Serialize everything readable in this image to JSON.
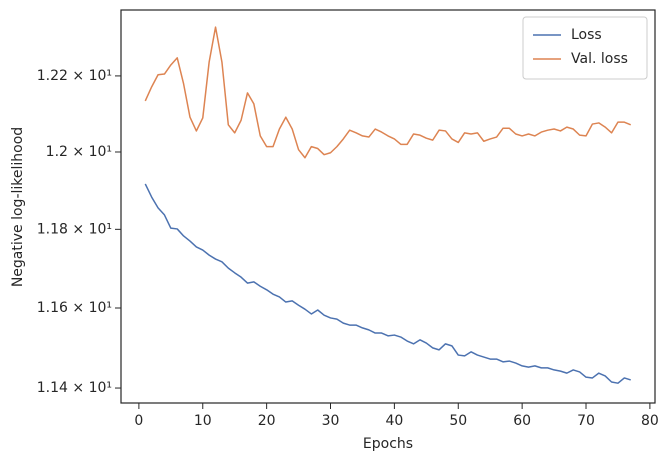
{
  "chart_data": {
    "type": "line",
    "xlabel": "Epochs",
    "ylabel": "Negative log-likelihood",
    "x": [
      1,
      2,
      3,
      4,
      5,
      6,
      7,
      8,
      9,
      10,
      11,
      12,
      13,
      14,
      15,
      16,
      17,
      18,
      19,
      20,
      21,
      22,
      23,
      24,
      25,
      26,
      27,
      28,
      29,
      30,
      31,
      32,
      33,
      34,
      35,
      36,
      37,
      38,
      39,
      40,
      41,
      42,
      43,
      44,
      45,
      46,
      47,
      48,
      49,
      50,
      51,
      52,
      53,
      54,
      55,
      56,
      57,
      58,
      59,
      60,
      61,
      62,
      63,
      64,
      65,
      66,
      67,
      68,
      69,
      70,
      71,
      72,
      73,
      74,
      75,
      76,
      77
    ],
    "series": [
      {
        "name": "Loss",
        "color": "#4c72b0",
        "values": [
          11.917,
          11.883,
          11.855,
          11.837,
          11.803,
          11.801,
          11.783,
          11.77,
          11.755,
          11.747,
          11.734,
          11.724,
          11.717,
          11.701,
          11.689,
          11.678,
          11.663,
          11.666,
          11.655,
          11.646,
          11.635,
          11.628,
          11.615,
          11.618,
          11.607,
          11.597,
          11.585,
          11.595,
          11.582,
          11.575,
          11.572,
          11.562,
          11.557,
          11.557,
          11.55,
          11.545,
          11.537,
          11.537,
          11.53,
          11.532,
          11.527,
          11.517,
          11.51,
          11.52,
          11.512,
          11.5,
          11.495,
          11.51,
          11.505,
          11.482,
          11.48,
          11.49,
          11.482,
          11.477,
          11.472,
          11.472,
          11.465,
          11.467,
          11.462,
          11.455,
          11.452,
          11.455,
          11.45,
          11.45,
          11.445,
          11.442,
          11.437,
          11.445,
          11.44,
          11.427,
          11.425,
          11.437,
          11.43,
          11.415,
          11.412,
          11.425,
          11.42
        ]
      },
      {
        "name": "Val. loss",
        "color": "#dd8452",
        "values": [
          12.134,
          12.171,
          12.203,
          12.205,
          12.229,
          12.248,
          12.179,
          12.091,
          12.055,
          12.089,
          12.237,
          12.33,
          12.237,
          12.071,
          12.05,
          12.083,
          12.155,
          12.126,
          12.042,
          12.014,
          12.014,
          12.06,
          12.091,
          12.06,
          12.006,
          11.985,
          12.014,
          12.009,
          11.993,
          11.998,
          12.014,
          12.034,
          12.057,
          12.05,
          12.042,
          12.039,
          12.06,
          12.052,
          12.042,
          12.034,
          12.02,
          12.02,
          12.047,
          12.044,
          12.036,
          12.031,
          12.057,
          12.055,
          12.034,
          12.025,
          12.05,
          12.047,
          12.05,
          12.028,
          12.034,
          12.039,
          12.062,
          12.062,
          12.047,
          12.042,
          12.047,
          12.042,
          12.052,
          12.057,
          12.06,
          12.055,
          12.065,
          12.06,
          12.044,
          12.042,
          12.073,
          12.076,
          12.065,
          12.05,
          12.078,
          12.078,
          12.071
        ]
      }
    ],
    "xlim": [
      -2.8,
      80.8
    ],
    "xticks": [
      0,
      10,
      20,
      30,
      40,
      50,
      60,
      70,
      80
    ],
    "ylim": [
      11.363,
      12.376
    ],
    "ylog": true,
    "yticks": [
      {
        "value": 11.4,
        "label": "1.14 × 10¹"
      },
      {
        "value": 11.6,
        "label": "1.16 × 10¹"
      },
      {
        "value": 11.8,
        "label": "1.18 × 10¹"
      },
      {
        "value": 12.0,
        "label": "1.2 × 10¹"
      },
      {
        "value": 12.2,
        "label": "1.22 × 10¹"
      }
    ],
    "grid": false,
    "legend": "upper right"
  }
}
